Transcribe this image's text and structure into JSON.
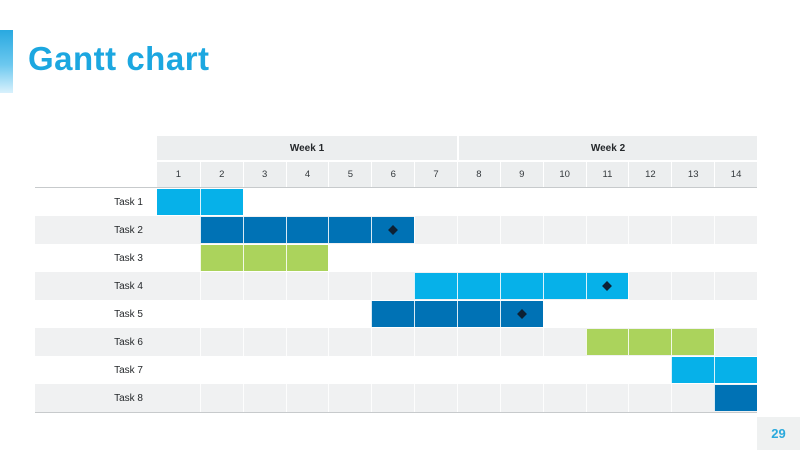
{
  "slide": {
    "title": "Gantt chart",
    "page_number": "29"
  },
  "colors": {
    "title_cyan": "#1CA7E0",
    "bar_cyan": "#06B1E9",
    "bar_blue": "#0072B5",
    "bar_green": "#ABD35C",
    "milestone_dark": "#0D2134",
    "header_bg": "#ECEEEF",
    "row_alt_bg": "#F0F1F2"
  },
  "chart_data": {
    "type": "bar",
    "subtype": "gantt",
    "title": "Gantt chart",
    "legend": false,
    "grid": true,
    "week_groups": [
      {
        "label": "Week 1",
        "day_span": [
          1,
          7
        ]
      },
      {
        "label": "Week 2",
        "day_span": [
          8,
          14
        ]
      }
    ],
    "day_labels": [
      "1",
      "2",
      "3",
      "4",
      "5",
      "6",
      "7",
      "8",
      "9",
      "10",
      "11",
      "12",
      "13",
      "14"
    ],
    "tasks": [
      {
        "label": "Task 1",
        "start": 1,
        "end": 2,
        "color": "cyan",
        "milestone_day": null
      },
      {
        "label": "Task 2",
        "start": 2,
        "end": 6,
        "color": "blue",
        "milestone_day": 6
      },
      {
        "label": "Task 3",
        "start": 2,
        "end": 4,
        "color": "green",
        "milestone_day": null
      },
      {
        "label": "Task 4",
        "start": 7,
        "end": 11,
        "color": "cyan",
        "milestone_day": 11
      },
      {
        "label": "Task 5",
        "start": 6,
        "end": 9,
        "color": "blue",
        "milestone_day": 9
      },
      {
        "label": "Task 6",
        "start": 11,
        "end": 13,
        "color": "green",
        "milestone_day": null
      },
      {
        "label": "Task 7",
        "start": 13,
        "end": 14,
        "color": "cyan",
        "milestone_day": null
      },
      {
        "label": "Task 8",
        "start": 14,
        "end": 14,
        "color": "blue",
        "milestone_day": null
      }
    ]
  }
}
